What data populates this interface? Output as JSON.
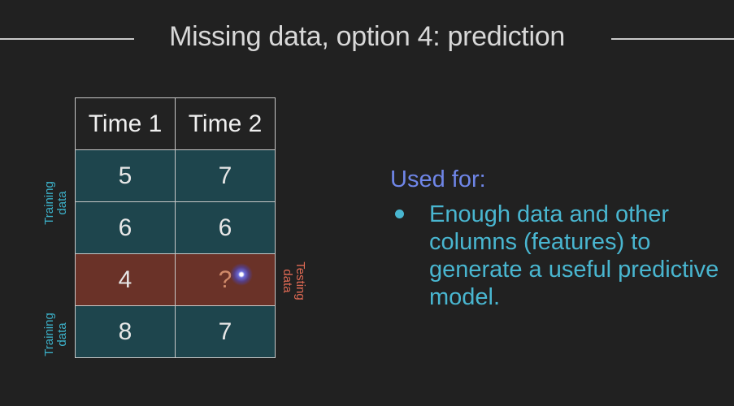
{
  "slide": {
    "title": "Missing data, option 4: prediction",
    "table": {
      "headers": [
        "Time 1",
        "Time 2"
      ],
      "rows": [
        {
          "kind": "training",
          "cells": [
            "5",
            "7"
          ]
        },
        {
          "kind": "training",
          "cells": [
            "6",
            "6"
          ]
        },
        {
          "kind": "testing",
          "cells": [
            "4",
            "?"
          ]
        },
        {
          "kind": "training",
          "cells": [
            "8",
            "7"
          ]
        }
      ],
      "training_label": "Training\ndata",
      "testing_label": "Testing\ndata"
    },
    "used_for": {
      "heading": "Used for:",
      "bullet": "Enough data and other columns (features) to generate a useful predictive model."
    },
    "colors": {
      "training_row": "#1e454d",
      "testing_row": "#6a3228",
      "training_label": "#3cb0c8",
      "testing_label": "#e06a54",
      "heading": "#6f86e8",
      "bullet": "#49b6d0"
    }
  }
}
